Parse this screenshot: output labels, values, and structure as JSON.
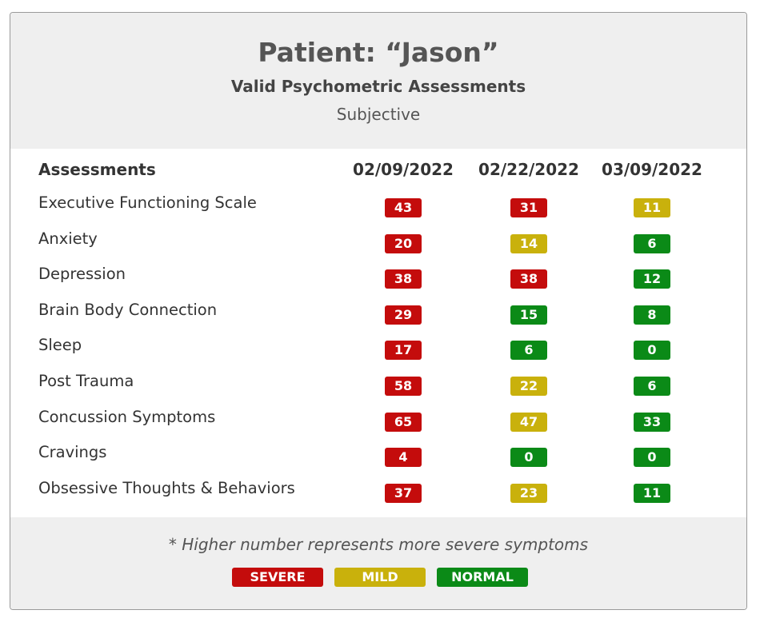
{
  "header": {
    "title": "Patient: “Jason”",
    "subtitle": "Valid Psychometric Assessments",
    "subsubtitle": "Subjective"
  },
  "table": {
    "label_header": "Assessments",
    "dates": [
      "02/09/2022",
      "02/22/2022",
      "03/09/2022"
    ],
    "rows": [
      {
        "label": "Executive Functioning Scale",
        "scores": [
          {
            "value": "43",
            "level": "severe"
          },
          {
            "value": "31",
            "level": "severe"
          },
          {
            "value": "11",
            "level": "mild"
          }
        ]
      },
      {
        "label": "Anxiety",
        "scores": [
          {
            "value": "20",
            "level": "severe"
          },
          {
            "value": "14",
            "level": "mild"
          },
          {
            "value": "6",
            "level": "normal"
          }
        ]
      },
      {
        "label": "Depression",
        "scores": [
          {
            "value": "38",
            "level": "severe"
          },
          {
            "value": "38",
            "level": "severe"
          },
          {
            "value": "12",
            "level": "normal"
          }
        ]
      },
      {
        "label": "Brain Body Connection",
        "scores": [
          {
            "value": "29",
            "level": "severe"
          },
          {
            "value": "15",
            "level": "normal"
          },
          {
            "value": "8",
            "level": "normal"
          }
        ]
      },
      {
        "label": "Sleep",
        "scores": [
          {
            "value": "17",
            "level": "severe"
          },
          {
            "value": "6",
            "level": "normal"
          },
          {
            "value": "0",
            "level": "normal"
          }
        ]
      },
      {
        "label": "Post Trauma",
        "scores": [
          {
            "value": "58",
            "level": "severe"
          },
          {
            "value": "22",
            "level": "mild"
          },
          {
            "value": "6",
            "level": "normal"
          }
        ]
      },
      {
        "label": "Concussion Symptoms",
        "scores": [
          {
            "value": "65",
            "level": "severe"
          },
          {
            "value": "47",
            "level": "mild"
          },
          {
            "value": "33",
            "level": "normal"
          }
        ]
      },
      {
        "label": "Cravings",
        "scores": [
          {
            "value": "4",
            "level": "severe"
          },
          {
            "value": "0",
            "level": "normal"
          },
          {
            "value": "0",
            "level": "normal"
          }
        ]
      },
      {
        "label": "Obsessive Thoughts & Behaviors",
        "scores": [
          {
            "value": "37",
            "level": "severe"
          },
          {
            "value": "23",
            "level": "mild"
          },
          {
            "value": "11",
            "level": "normal"
          }
        ]
      }
    ]
  },
  "footer": {
    "note": "* Higher number represents more severe symptoms",
    "legend": [
      {
        "label": "SEVERE",
        "level": "severe"
      },
      {
        "label": "MILD",
        "level": "mild"
      },
      {
        "label": "NORMAL",
        "level": "normal"
      }
    ]
  },
  "colors": {
    "severe": "#c40c0c",
    "mild": "#c9b10c",
    "normal": "#0b8a17"
  }
}
